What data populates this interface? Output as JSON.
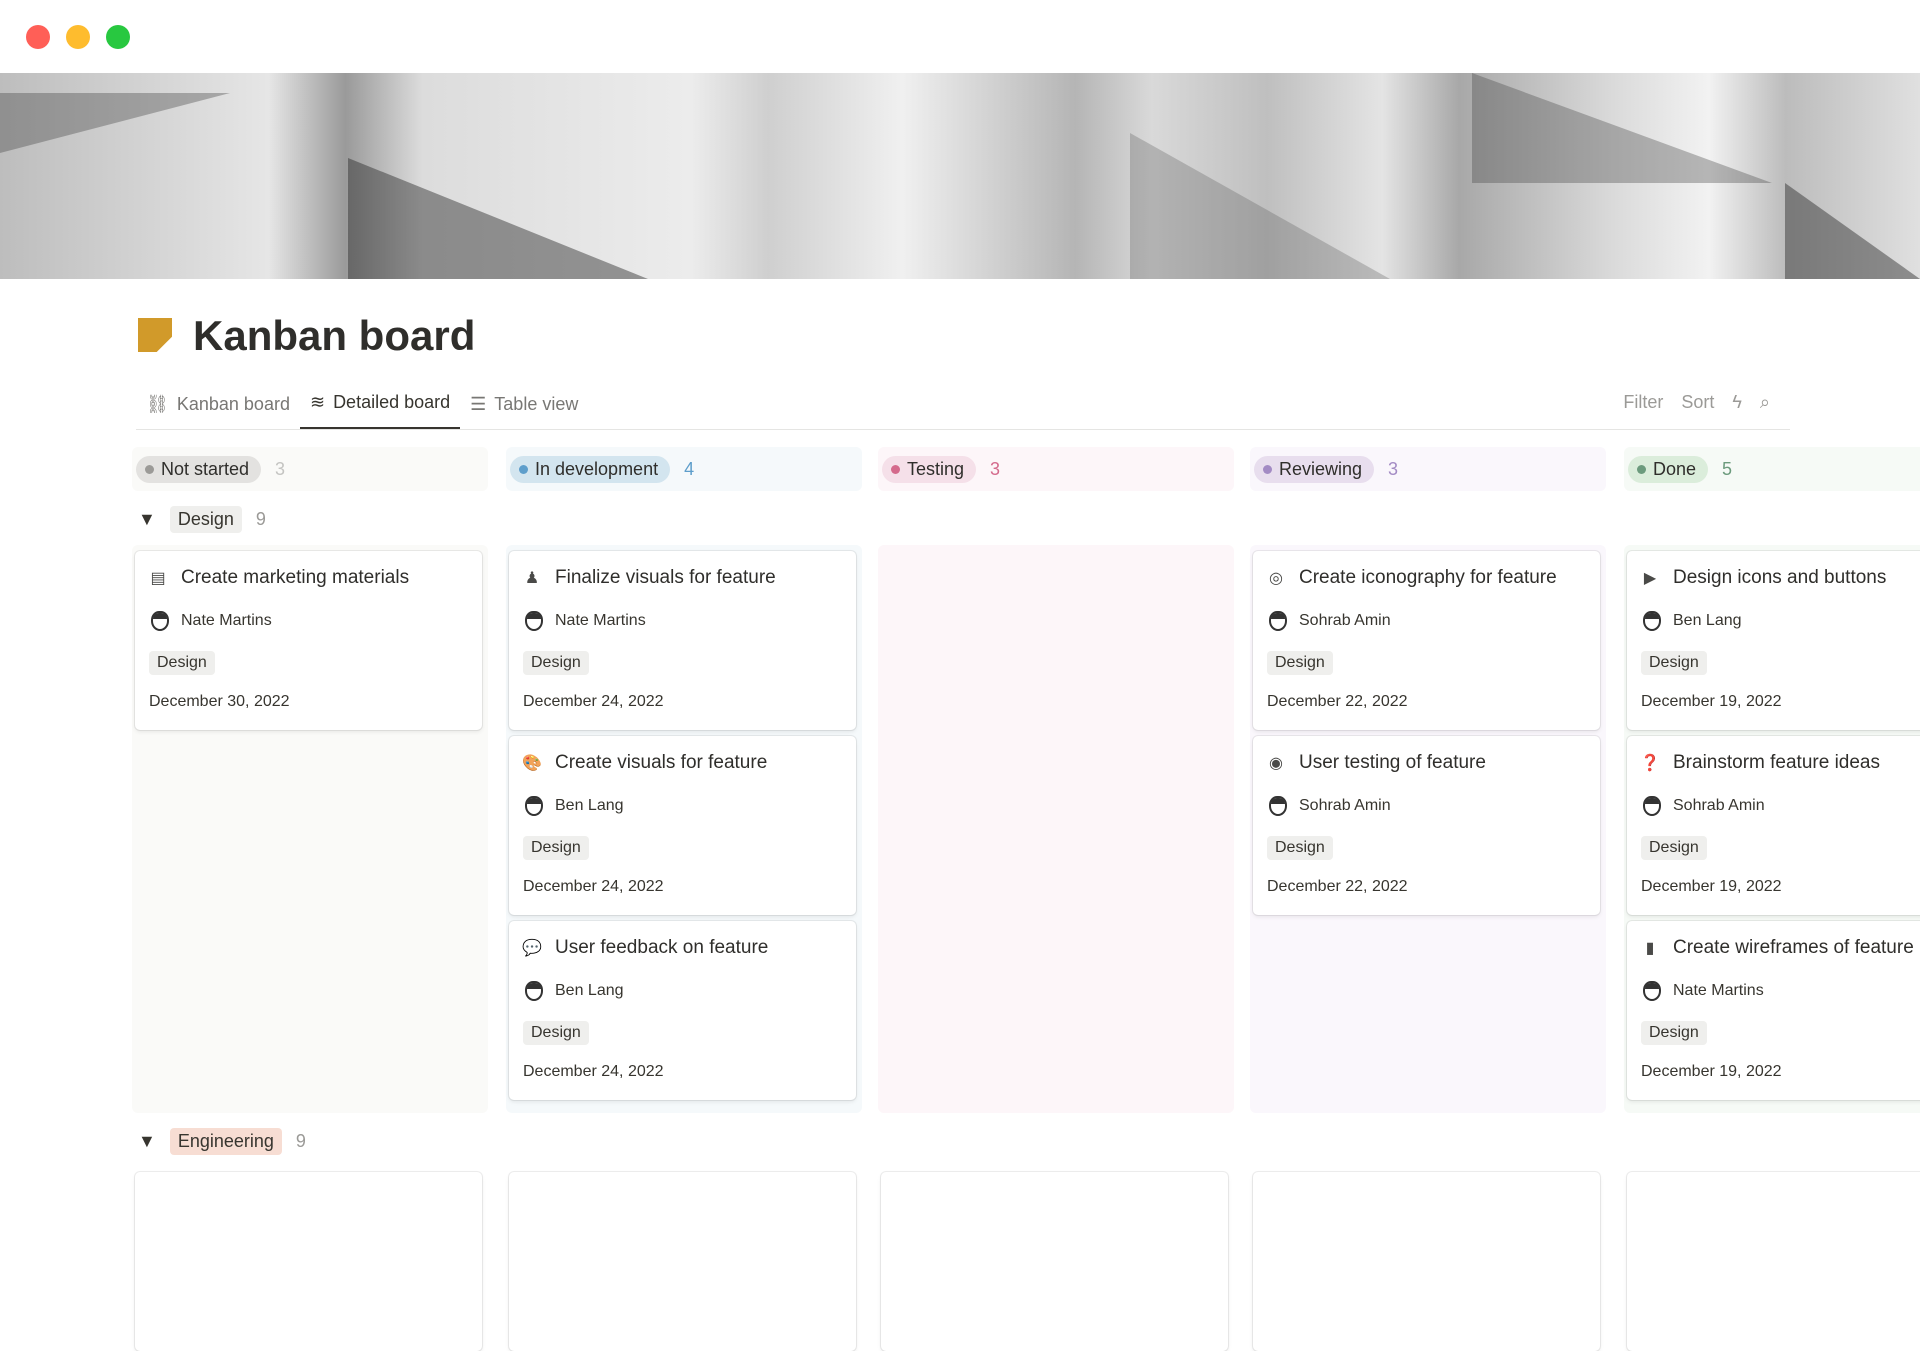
{
  "window": {
    "controls": [
      {
        "name": "close",
        "color": "#ff5f57"
      },
      {
        "name": "minimize",
        "color": "#febc2e"
      },
      {
        "name": "zoom",
        "color": "#28c840"
      }
    ]
  },
  "page": {
    "title": "Kanban board",
    "icon": "sticky-note-icon",
    "icon_color": "#d19a2a"
  },
  "tabs": [
    {
      "label": "Kanban board",
      "icon": "board-icon"
    },
    {
      "label": "Detailed board",
      "icon": "waves-icon",
      "active": true
    },
    {
      "label": "Table view",
      "icon": "list-icon"
    }
  ],
  "actions": {
    "filter": "Filter",
    "sort": "Sort",
    "automation_icon": "lightning-icon",
    "search_icon": "search-icon"
  },
  "columns": [
    {
      "label": "Not started",
      "count": "3",
      "dot": "#9b9a97",
      "pill": "#e3e2e0",
      "bg": "#fafaf8",
      "countColor": "#c4c4c2"
    },
    {
      "label": "In development",
      "count": "4",
      "dot": "#5e9ecb",
      "pill": "#d3e5ef",
      "bg": "#f5f9fb",
      "countColor": "#5e9ecb"
    },
    {
      "label": "Testing",
      "count": "3",
      "dot": "#d46a8c",
      "pill": "#f5e0e9",
      "bg": "#fdf6f9",
      "countColor": "#d46a8c"
    },
    {
      "label": "Reviewing",
      "count": "3",
      "dot": "#a38bc4",
      "pill": "#e8deee",
      "bg": "#faf7fc",
      "countColor": "#a38bc4"
    },
    {
      "label": "Done",
      "count": "5",
      "dot": "#6c9b7d",
      "pill": "#dbeddb",
      "bg": "#f6faf6",
      "countColor": "#6c9b7d"
    }
  ],
  "groups": [
    {
      "label": "Design",
      "count": "9",
      "bg": "#efefed"
    },
    {
      "label": "Engineering",
      "count": "9",
      "bg": "#f7ddd3"
    }
  ],
  "cards": [
    {
      "col": 0,
      "row": 0,
      "title": "Create marketing materials",
      "icon": "newspaper-icon",
      "glyph": "▤",
      "person": "Nate Martins",
      "tag": "Design",
      "date": "December 30, 2022"
    },
    {
      "col": 1,
      "row": 0,
      "title": "Finalize visuals for feature",
      "icon": "stamp-icon",
      "glyph": "♟",
      "person": "Nate Martins",
      "tag": "Design",
      "date": "December 24, 2022"
    },
    {
      "col": 1,
      "row": 1,
      "title": "Create visuals for feature",
      "icon": "palette-icon",
      "glyph": "🎨",
      "person": "Ben Lang",
      "tag": "Design",
      "date": "December 24, 2022"
    },
    {
      "col": 1,
      "row": 2,
      "title": "User feedback on feature",
      "icon": "speech-bubble-icon",
      "glyph": "💬",
      "person": "Ben Lang",
      "tag": "Design",
      "date": "December 24, 2022"
    },
    {
      "col": 3,
      "row": 0,
      "title": "Create iconography for feature",
      "icon": "target-icon",
      "glyph": "◎",
      "person": "Sohrab Amin",
      "tag": "Design",
      "date": "December 22, 2022"
    },
    {
      "col": 3,
      "row": 1,
      "title": "User testing of feature",
      "icon": "user-circle-icon",
      "glyph": "◉",
      "person": "Sohrab Amin",
      "tag": "Design",
      "date": "December 22, 2022"
    },
    {
      "col": 4,
      "row": 0,
      "title": "Design icons and buttons",
      "icon": "play-circle-icon",
      "glyph": "▶",
      "person": "Ben Lang",
      "tag": "Design",
      "date": "December 19, 2022"
    },
    {
      "col": 4,
      "row": 1,
      "title": "Brainstorm feature ideas",
      "icon": "question-bubble-icon",
      "glyph": "❓",
      "person": "Sohrab Amin",
      "tag": "Design",
      "date": "December 19, 2022"
    },
    {
      "col": 4,
      "row": 2,
      "title": "Create wireframes of feature",
      "icon": "phone-icon",
      "glyph": "▮",
      "person": "Nate Martins",
      "tag": "Design",
      "date": "December 19, 2022"
    }
  ]
}
